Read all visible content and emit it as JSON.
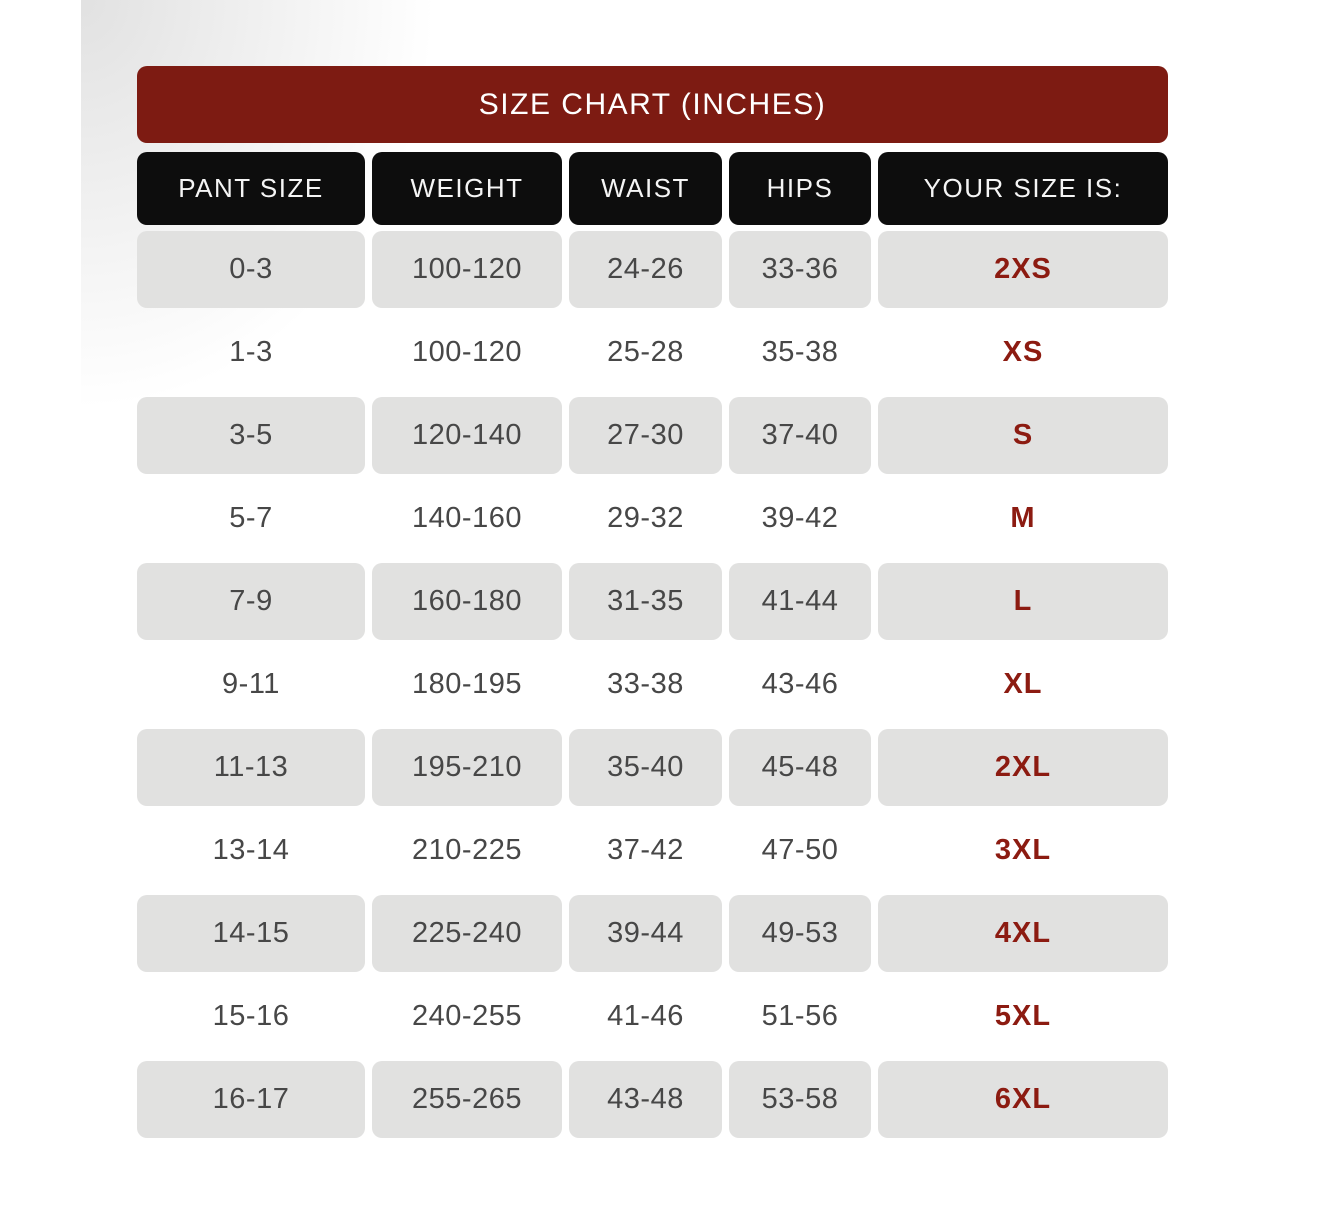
{
  "title_bar": {
    "label": "SIZE CHART (INCHES)"
  },
  "table": {
    "columns": [
      "PANT SIZE",
      "WEIGHT",
      "WAIST",
      "HIPS",
      "YOUR SIZE IS:"
    ],
    "rows": [
      {
        "pant_size": "0-3",
        "weight": "100-120",
        "waist": "24-26",
        "hips": "33-36",
        "your_size": "2XS"
      },
      {
        "pant_size": "1-3",
        "weight": "100-120",
        "waist": "25-28",
        "hips": "35-38",
        "your_size": "XS"
      },
      {
        "pant_size": "3-5",
        "weight": "120-140",
        "waist": "27-30",
        "hips": "37-40",
        "your_size": "S"
      },
      {
        "pant_size": "5-7",
        "weight": "140-160",
        "waist": "29-32",
        "hips": "39-42",
        "your_size": "M"
      },
      {
        "pant_size": "7-9",
        "weight": "160-180",
        "waist": "31-35",
        "hips": "41-44",
        "your_size": "L"
      },
      {
        "pant_size": "9-11",
        "weight": "180-195",
        "waist": "33-38",
        "hips": "43-46",
        "your_size": "XL"
      },
      {
        "pant_size": "11-13",
        "weight": "195-210",
        "waist": "35-40",
        "hips": "45-48",
        "your_size": "2XL"
      },
      {
        "pant_size": "13-14",
        "weight": "210-225",
        "waist": "37-42",
        "hips": "47-50",
        "your_size": "3XL"
      },
      {
        "pant_size": "14-15",
        "weight": "225-240",
        "waist": "39-44",
        "hips": "49-53",
        "your_size": "4XL"
      },
      {
        "pant_size": "15-16",
        "weight": "240-255",
        "waist": "41-46",
        "hips": "51-56",
        "your_size": "5XL"
      },
      {
        "pant_size": "16-17",
        "weight": "255-265",
        "waist": "43-48",
        "hips": "53-58",
        "your_size": "6XL"
      }
    ]
  },
  "colors": {
    "title_bar_bg": "#7D1B12",
    "header_bg": "#0D0D0D",
    "header_text": "#F5F5F5",
    "row_shaded_bg": "#E1E1E0",
    "data_text": "#474747",
    "size_text": "#8C1B11"
  }
}
